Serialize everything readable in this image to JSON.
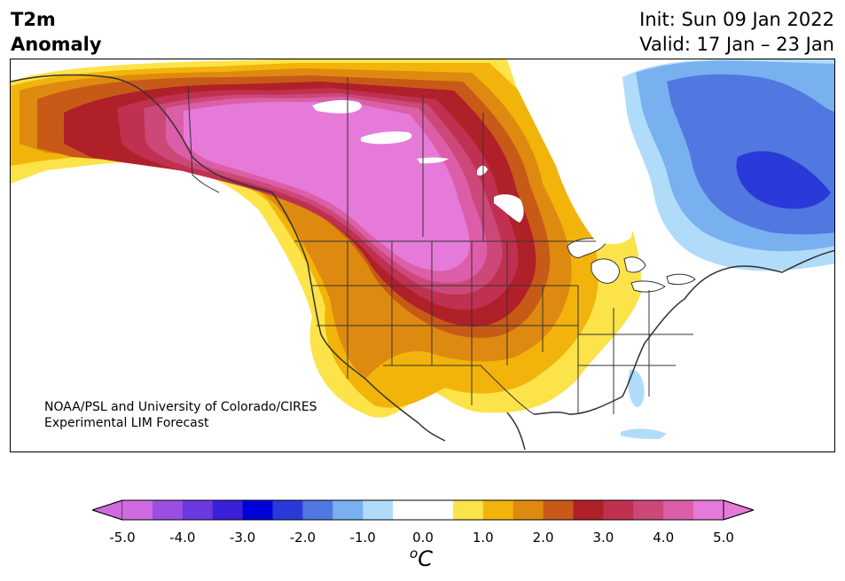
{
  "title": {
    "line1": "T2m",
    "line2": "Anomaly"
  },
  "dates": {
    "init": "Init: Sun 09 Jan 2022",
    "valid": "Valid: 17 Jan – 23 Jan"
  },
  "credit": {
    "line1": "NOAA/PSL and University of Colorado/CIRES",
    "line2": "Experimental LIM Forecast"
  },
  "colorbar": {
    "unit_base": "C",
    "unit_sup": "o",
    "ticks": [
      "-5.0",
      "-4.0",
      "-3.0",
      "-2.0",
      "-1.0",
      "0.0",
      "1.0",
      "2.0",
      "3.0",
      "4.0",
      "5.0"
    ],
    "colors": [
      "#d06ae0",
      "#9a4fe0",
      "#6a3ae0",
      "#3a20d8",
      "#0000d8",
      "#2a3ad8",
      "#5078e0",
      "#78b0f0",
      "#b0dcfa",
      "#ffffff",
      "#ffffff",
      "#fde34a",
      "#f2b40a",
      "#de8a10",
      "#c85a18",
      "#b02028",
      "#c03050",
      "#cc4878",
      "#dc5ea8",
      "#e67ad8"
    ],
    "extend_low_color": "#d06ae0",
    "extend_high_color": "#e67ad8"
  },
  "map": {
    "region": "North America",
    "colors": {
      "warm1": "#fde34a",
      "warm2": "#f2b40a",
      "warm3": "#de8a10",
      "warm4": "#c85a18",
      "warm5": "#b02028",
      "warm6": "#c03050",
      "warm7": "#cc4878",
      "warm8": "#dc5ea8",
      "warm9": "#e67ad8",
      "cool1": "#b0dcfa",
      "cool2": "#78b0f0",
      "cool3": "#5078e0",
      "cool4": "#2a3ad8"
    }
  }
}
